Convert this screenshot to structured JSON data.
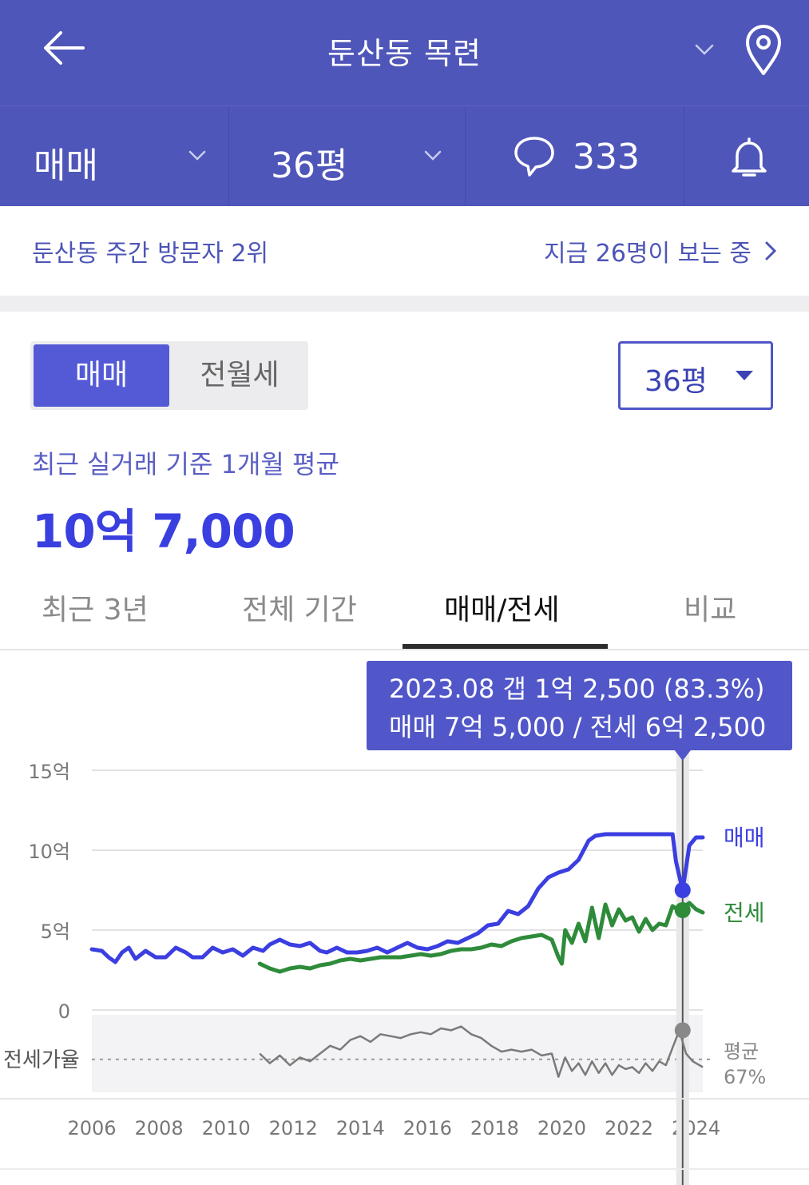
{
  "header": {
    "title": "둔산동 목련"
  },
  "subbar": {
    "trade_type": "매매",
    "area": "36평",
    "comments_count": "333"
  },
  "visitors": {
    "rank_text": "둔산동 주간 방문자 2위",
    "now_viewing": "지금 26명이 보는 중"
  },
  "segment": {
    "options": [
      "매매",
      "전월세"
    ],
    "selected": "매매"
  },
  "area_select": {
    "value": "36평"
  },
  "summary": {
    "caption": "최근 실거래 기준 1개월 평균",
    "price": "10억 7,000"
  },
  "tabs": [
    {
      "label": "최근 3년",
      "active": false
    },
    {
      "label": "전체 기간",
      "active": false
    },
    {
      "label": "매매/전세",
      "active": true
    },
    {
      "label": "비교",
      "active": false
    }
  ],
  "tooltip": {
    "line1": "2023.08  갭 1억 2,500 (83.3%)",
    "line2": "매매 7억 5,000 / 전세 6억 2,500"
  },
  "colors": {
    "header_bg": "#4f56b9",
    "sale": "#3b3ee0",
    "jeonse": "#2e8b3a",
    "ratio": "#777777"
  },
  "chart_data": {
    "type": "line",
    "y_tick_labels": [
      "15억",
      "10억",
      "5억",
      "0"
    ],
    "ylim": [
      0,
      15
    ],
    "x_tick_labels": [
      "2006",
      "2008",
      "2010",
      "2012",
      "2014",
      "2016",
      "2018",
      "2020",
      "2022",
      "2024"
    ],
    "xlim": [
      2006.0,
      2024.2
    ],
    "ratio_label": "전세가율",
    "ratio_avg_label": "평균",
    "ratio_avg_value": "67%",
    "highlight": {
      "x": 2023.6,
      "sale": 7.5,
      "jeonse": 6.25
    },
    "series": [
      {
        "name": "매매",
        "color": "#3b3ee0",
        "points": [
          [
            2006.0,
            3.8
          ],
          [
            2006.3,
            3.7
          ],
          [
            2006.5,
            3.3
          ],
          [
            2006.7,
            3.0
          ],
          [
            2006.9,
            3.6
          ],
          [
            2007.1,
            3.9
          ],
          [
            2007.3,
            3.2
          ],
          [
            2007.6,
            3.7
          ],
          [
            2007.9,
            3.3
          ],
          [
            2008.2,
            3.3
          ],
          [
            2008.5,
            3.9
          ],
          [
            2008.8,
            3.6
          ],
          [
            2009.0,
            3.3
          ],
          [
            2009.3,
            3.3
          ],
          [
            2009.6,
            3.9
          ],
          [
            2009.9,
            3.6
          ],
          [
            2010.2,
            3.8
          ],
          [
            2010.5,
            3.4
          ],
          [
            2010.8,
            3.9
          ],
          [
            2011.1,
            3.7
          ],
          [
            2011.3,
            4.1
          ],
          [
            2011.6,
            4.4
          ],
          [
            2011.9,
            4.1
          ],
          [
            2012.2,
            4.0
          ],
          [
            2012.5,
            4.2
          ],
          [
            2012.8,
            3.7
          ],
          [
            2013.0,
            3.6
          ],
          [
            2013.3,
            3.9
          ],
          [
            2013.6,
            3.6
          ],
          [
            2013.9,
            3.6
          ],
          [
            2014.2,
            3.7
          ],
          [
            2014.5,
            3.9
          ],
          [
            2014.8,
            3.6
          ],
          [
            2015.1,
            3.9
          ],
          [
            2015.4,
            4.2
          ],
          [
            2015.7,
            3.9
          ],
          [
            2016.0,
            3.8
          ],
          [
            2016.3,
            4.0
          ],
          [
            2016.6,
            4.3
          ],
          [
            2016.9,
            4.2
          ],
          [
            2017.2,
            4.5
          ],
          [
            2017.5,
            4.8
          ],
          [
            2017.8,
            5.3
          ],
          [
            2018.1,
            5.4
          ],
          [
            2018.4,
            6.2
          ],
          [
            2018.7,
            6.0
          ],
          [
            2019.0,
            6.5
          ],
          [
            2019.3,
            7.6
          ],
          [
            2019.6,
            8.3
          ],
          [
            2019.9,
            8.6
          ],
          [
            2020.2,
            8.8
          ],
          [
            2020.5,
            9.4
          ],
          [
            2020.8,
            10.6
          ],
          [
            2021.0,
            10.9
          ],
          [
            2021.3,
            11.0
          ],
          [
            2021.6,
            11.0
          ],
          [
            2022.0,
            11.0
          ],
          [
            2022.5,
            11.0
          ],
          [
            2023.0,
            11.0
          ],
          [
            2023.3,
            11.0
          ],
          [
            2023.4,
            9.3
          ],
          [
            2023.6,
            7.5
          ],
          [
            2023.8,
            10.3
          ],
          [
            2024.0,
            10.8
          ],
          [
            2024.2,
            10.8
          ]
        ]
      },
      {
        "name": "전세",
        "color": "#2e8b3a",
        "points": [
          [
            2011.0,
            2.9
          ],
          [
            2011.3,
            2.6
          ],
          [
            2011.6,
            2.4
          ],
          [
            2011.9,
            2.6
          ],
          [
            2012.2,
            2.7
          ],
          [
            2012.5,
            2.6
          ],
          [
            2012.8,
            2.8
          ],
          [
            2013.1,
            2.9
          ],
          [
            2013.4,
            3.1
          ],
          [
            2013.7,
            3.2
          ],
          [
            2014.0,
            3.1
          ],
          [
            2014.3,
            3.2
          ],
          [
            2014.6,
            3.3
          ],
          [
            2014.9,
            3.3
          ],
          [
            2015.2,
            3.3
          ],
          [
            2015.5,
            3.4
          ],
          [
            2015.8,
            3.5
          ],
          [
            2016.1,
            3.4
          ],
          [
            2016.4,
            3.5
          ],
          [
            2016.7,
            3.7
          ],
          [
            2017.0,
            3.8
          ],
          [
            2017.3,
            3.8
          ],
          [
            2017.6,
            3.9
          ],
          [
            2017.9,
            4.1
          ],
          [
            2018.2,
            4.0
          ],
          [
            2018.5,
            4.3
          ],
          [
            2018.8,
            4.5
          ],
          [
            2019.1,
            4.6
          ],
          [
            2019.4,
            4.7
          ],
          [
            2019.7,
            4.4
          ],
          [
            2019.9,
            3.3
          ],
          [
            2020.0,
            2.9
          ],
          [
            2020.1,
            5.0
          ],
          [
            2020.3,
            4.2
          ],
          [
            2020.5,
            5.4
          ],
          [
            2020.7,
            4.3
          ],
          [
            2020.9,
            6.4
          ],
          [
            2021.1,
            4.5
          ],
          [
            2021.3,
            6.6
          ],
          [
            2021.5,
            5.3
          ],
          [
            2021.7,
            6.3
          ],
          [
            2021.9,
            5.6
          ],
          [
            2022.1,
            5.8
          ],
          [
            2022.3,
            4.9
          ],
          [
            2022.5,
            5.7
          ],
          [
            2022.7,
            5.0
          ],
          [
            2022.9,
            5.4
          ],
          [
            2023.1,
            5.3
          ],
          [
            2023.3,
            6.5
          ],
          [
            2023.5,
            6.2
          ],
          [
            2023.8,
            6.7
          ],
          [
            2024.0,
            6.3
          ],
          [
            2024.2,
            6.1
          ]
        ]
      }
    ],
    "ratio_series": {
      "name": "전세가율",
      "points": [
        [
          2011.0,
          70
        ],
        [
          2011.3,
          65
        ],
        [
          2011.6,
          69
        ],
        [
          2011.9,
          64
        ],
        [
          2012.2,
          68
        ],
        [
          2012.5,
          66
        ],
        [
          2012.8,
          70
        ],
        [
          2013.1,
          74
        ],
        [
          2013.4,
          72
        ],
        [
          2013.7,
          77
        ],
        [
          2014.0,
          79
        ],
        [
          2014.3,
          76
        ],
        [
          2014.6,
          80
        ],
        [
          2014.9,
          79
        ],
        [
          2015.2,
          78
        ],
        [
          2015.5,
          80
        ],
        [
          2015.8,
          81
        ],
        [
          2016.1,
          80
        ],
        [
          2016.4,
          83
        ],
        [
          2016.7,
          82
        ],
        [
          2017.0,
          84
        ],
        [
          2017.3,
          80
        ],
        [
          2017.6,
          78
        ],
        [
          2017.9,
          74
        ],
        [
          2018.2,
          71
        ],
        [
          2018.5,
          72
        ],
        [
          2018.8,
          71
        ],
        [
          2019.1,
          72
        ],
        [
          2019.4,
          69
        ],
        [
          2019.7,
          70
        ],
        [
          2019.9,
          58
        ],
        [
          2020.1,
          68
        ],
        [
          2020.3,
          61
        ],
        [
          2020.5,
          65
        ],
        [
          2020.7,
          59
        ],
        [
          2020.9,
          66
        ],
        [
          2021.1,
          60
        ],
        [
          2021.3,
          65
        ],
        [
          2021.5,
          59
        ],
        [
          2021.7,
          64
        ],
        [
          2021.9,
          62
        ],
        [
          2022.1,
          63
        ],
        [
          2022.3,
          60
        ],
        [
          2022.5,
          65
        ],
        [
          2022.7,
          61
        ],
        [
          2022.9,
          66
        ],
        [
          2023.1,
          64
        ],
        [
          2023.3,
          73
        ],
        [
          2023.5,
          82
        ],
        [
          2023.7,
          70
        ],
        [
          2023.9,
          66
        ],
        [
          2024.2,
          63
        ]
      ]
    }
  }
}
